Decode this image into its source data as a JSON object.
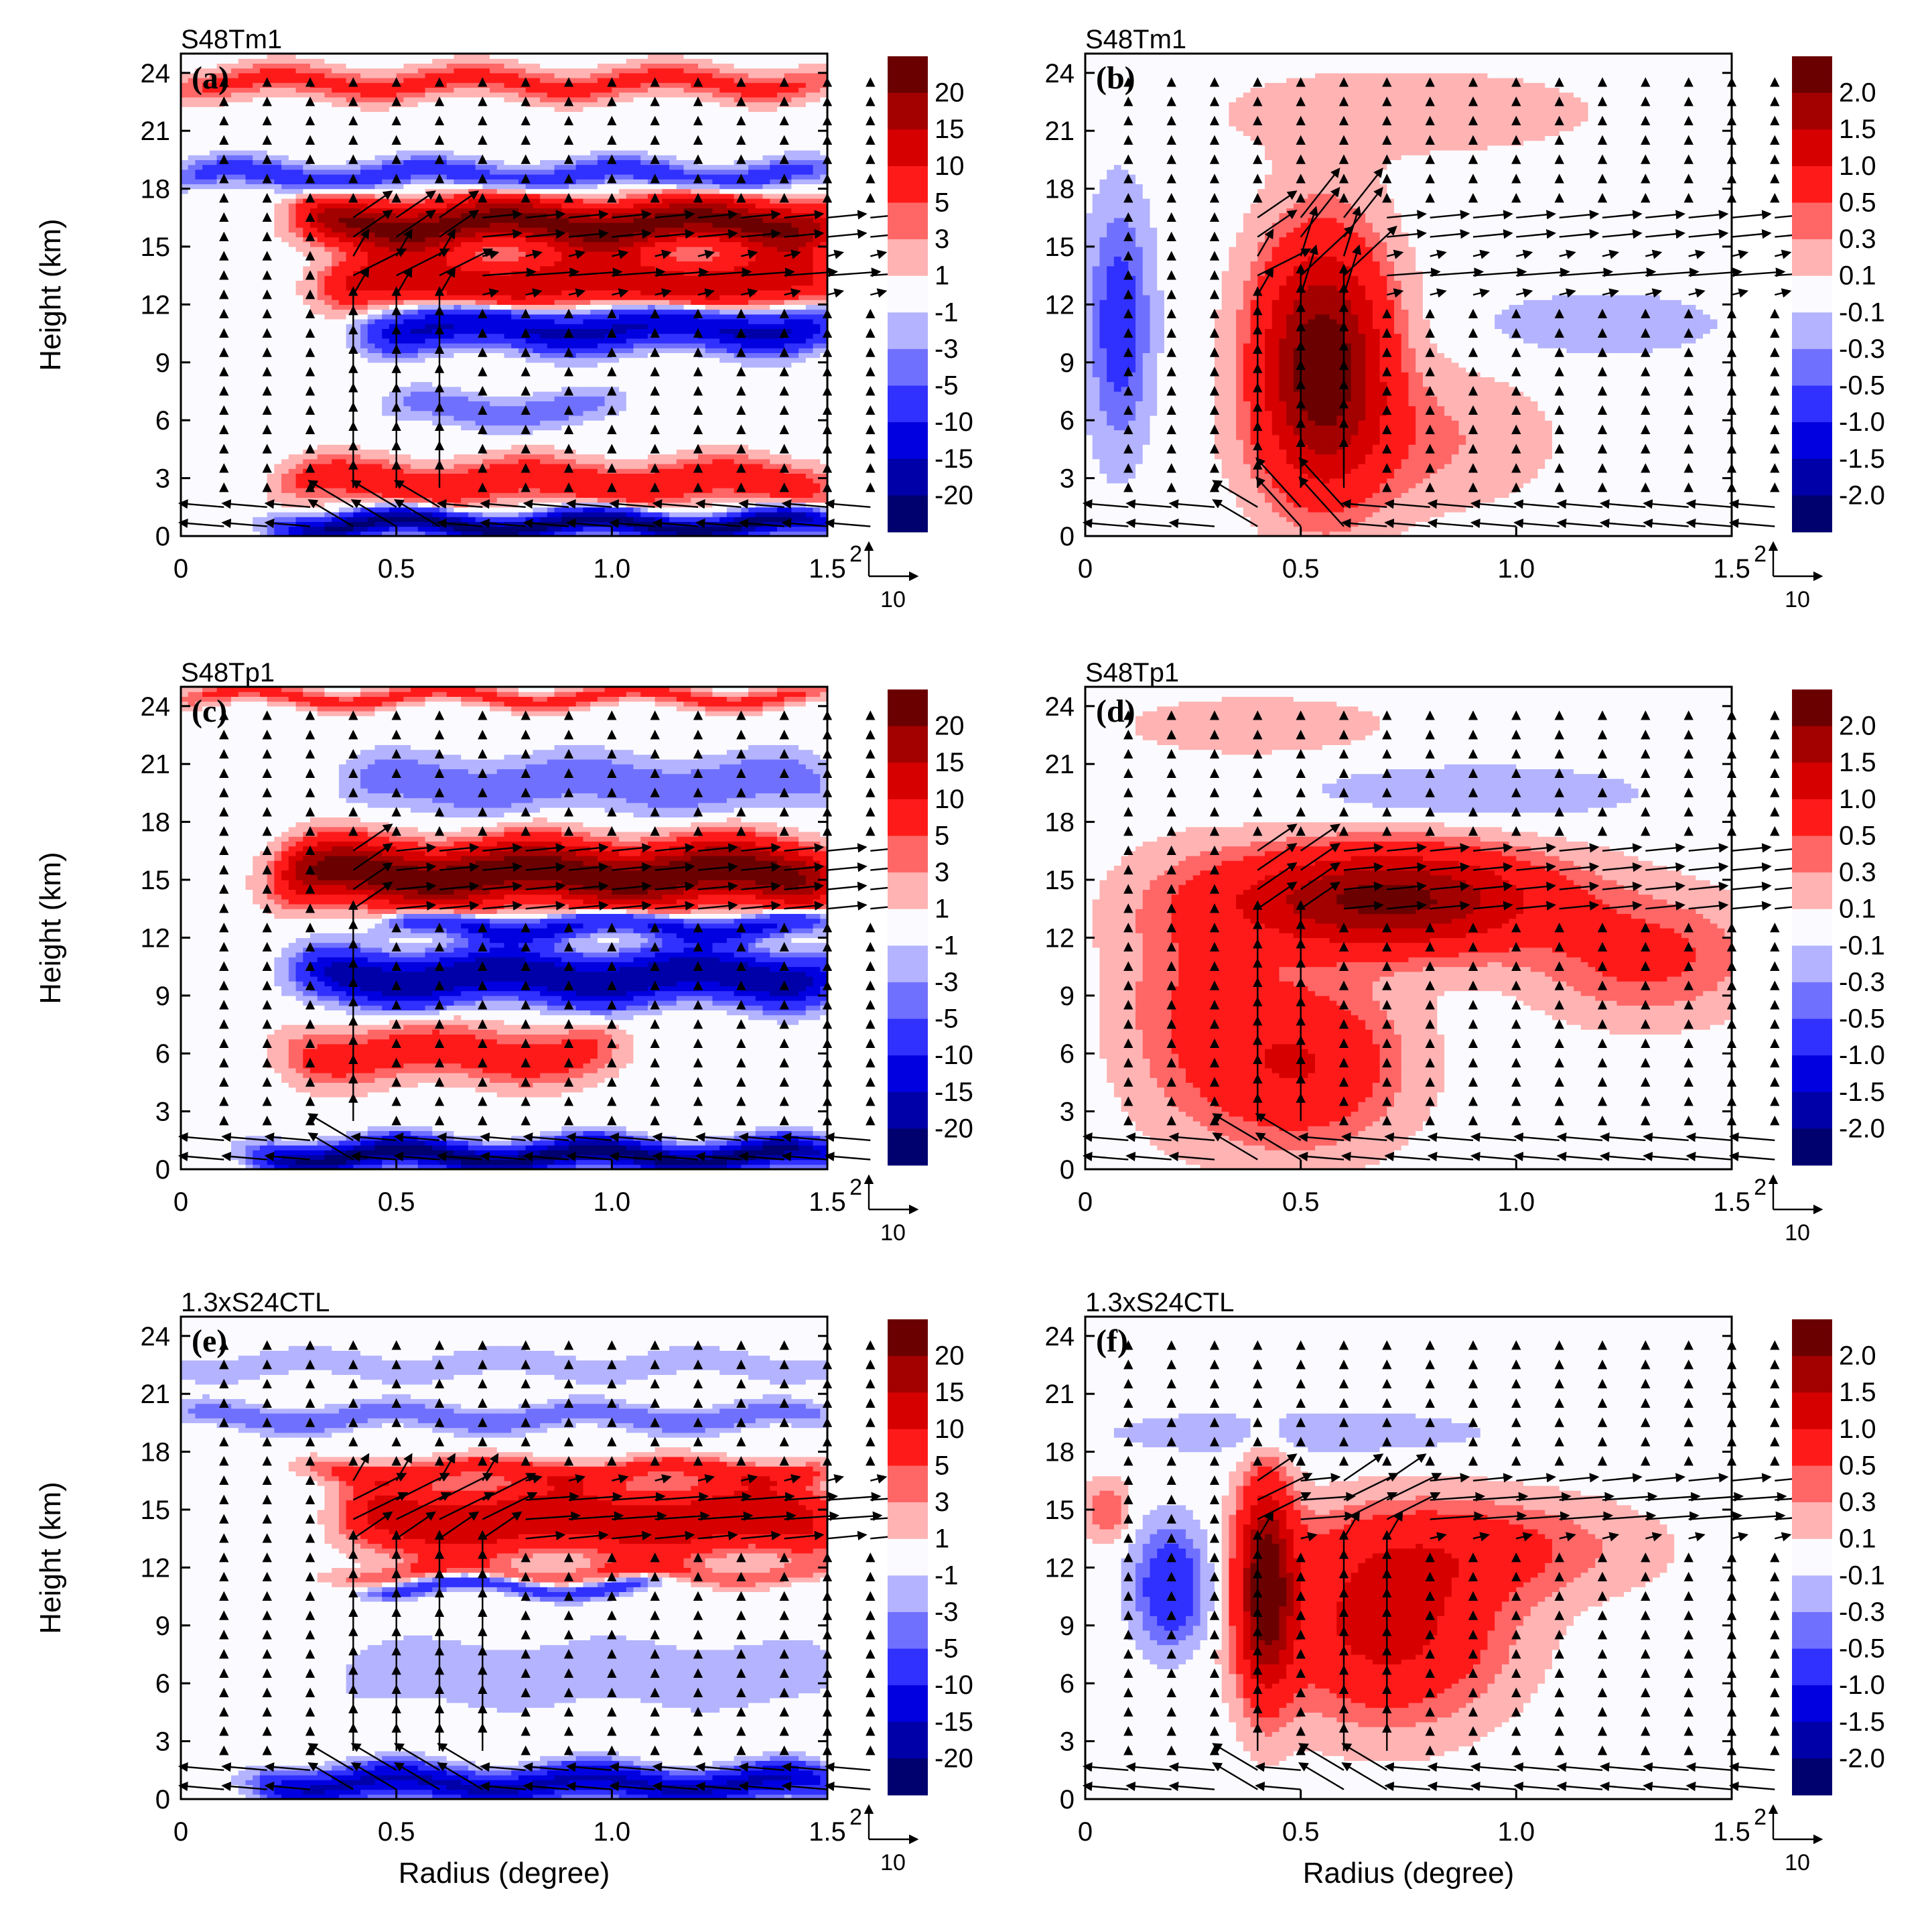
{
  "figure": {
    "xlabel": "Radius (degree)",
    "ylabel": "Height (km)",
    "xticks": [
      "0",
      "0.5",
      "1.0",
      "1.5"
    ],
    "yticks": [
      "0",
      "3",
      "6",
      "9",
      "12",
      "15",
      "18",
      "21",
      "24"
    ],
    "ref_vector": {
      "vertical_label": "2",
      "horizontal_label": "10"
    },
    "colorbar_left": [
      "20",
      "15",
      "10",
      "5",
      "3",
      "1",
      "-1",
      "-3",
      "-5",
      "-10",
      "-15",
      "-20"
    ],
    "colorbar_right": [
      "2.0",
      "1.5",
      "1.0",
      "0.5",
      "0.3",
      "0.1",
      "-0.1",
      "-0.3",
      "-0.5",
      "-1.0",
      "-1.5",
      "-2.0"
    ],
    "colors": {
      "levels": [
        "#6b0000",
        "#a30000",
        "#d60000",
        "#ff1a1a",
        "#ff6666",
        "#ffb3b3",
        "#fbfbff",
        "#b3b3ff",
        "#7070ff",
        "#3030ff",
        "#0000e0",
        "#0000a8",
        "#00006e"
      ]
    }
  },
  "chart_data": [
    {
      "type": "contour-vector",
      "panel_label": "(a)",
      "title": "S48Tm1",
      "xlabel": "Radius (degree)",
      "ylabel": "Height (km)",
      "xlim": [
        0,
        1.5
      ],
      "ylim": [
        0,
        25
      ],
      "levels": [
        -20,
        -15,
        -10,
        -5,
        -3,
        -1,
        1,
        3,
        5,
        10,
        15,
        20
      ],
      "features": [
        {
          "r0": 0.3,
          "r1": 1.5,
          "z": 16.2,
          "dz": 1.2,
          "amp": 22,
          "kind": "band"
        },
        {
          "r0": 0.35,
          "r1": 1.5,
          "z": 13.2,
          "dz": 1.3,
          "amp": 14,
          "kind": "band"
        },
        {
          "r0": 0.45,
          "r1": 1.5,
          "z": 10.8,
          "dz": 1.0,
          "amp": -16,
          "kind": "band"
        },
        {
          "r0": 0.0,
          "r1": 1.5,
          "z": 18.7,
          "dz": 0.7,
          "amp": -7,
          "kind": "band"
        },
        {
          "r0": 0.25,
          "r1": 1.5,
          "z": 2.8,
          "dz": 1.1,
          "amp": 8,
          "kind": "band"
        },
        {
          "r0": 0.25,
          "r1": 1.5,
          "z": 0.6,
          "dz": 0.6,
          "amp": -22,
          "kind": "band"
        },
        {
          "r0": 0.5,
          "r1": 1.0,
          "z": 6.6,
          "dz": 0.8,
          "amp": -5,
          "kind": "band"
        },
        {
          "r0": 0.0,
          "r1": 1.5,
          "z": 23.5,
          "dz": 0.8,
          "amp": 6,
          "kind": "band"
        }
      ],
      "vectors": {
        "inflow_z": 1.0,
        "outflow_z": [
          16,
          13.5
        ],
        "updraft_r": [
          0.4,
          0.5,
          0.6
        ]
      }
    },
    {
      "type": "contour-vector",
      "panel_label": "(b)",
      "title": "S48Tm1",
      "xlabel": "Radius (degree)",
      "ylabel": "Height (km)",
      "xlim": [
        0,
        1.5
      ],
      "ylim": [
        0,
        25
      ],
      "levels": [
        -2.0,
        -1.5,
        -1.0,
        -0.5,
        -0.3,
        -0.1,
        0.1,
        0.3,
        0.5,
        1.0,
        1.5,
        2.0
      ],
      "features": [
        {
          "r": 0.55,
          "z": 9,
          "sr": 0.14,
          "sz": 6,
          "amp": 2.4,
          "kind": "blob"
        },
        {
          "r": 0.75,
          "z": 5,
          "sr": 0.3,
          "sz": 3.5,
          "amp": 0.35,
          "kind": "blob"
        },
        {
          "r": 0.08,
          "z": 11,
          "sr": 0.07,
          "sz": 6,
          "amp": -0.7,
          "kind": "blob"
        },
        {
          "r": 1.2,
          "z": 11,
          "sr": 0.25,
          "sz": 1.5,
          "amp": -0.3,
          "kind": "blob"
        },
        {
          "r": 0.75,
          "z": 22,
          "sr": 0.5,
          "sz": 2.5,
          "amp": 0.2,
          "kind": "blob"
        }
      ],
      "vectors": {
        "inflow_z": 1.0,
        "outflow_z": [
          16,
          13.5
        ],
        "updraft_r": [
          0.45,
          0.55,
          0.6
        ]
      }
    },
    {
      "type": "contour-vector",
      "panel_label": "(c)",
      "title": "S48Tp1",
      "xlabel": "Radius (degree)",
      "ylabel": "Height (km)",
      "xlim": [
        0,
        1.5
      ],
      "ylim": [
        0,
        25
      ],
      "levels": [
        -20,
        -15,
        -10,
        -5,
        -3,
        -1,
        1,
        3,
        5,
        10,
        15,
        20
      ],
      "features": [
        {
          "r0": 0.25,
          "r1": 1.5,
          "z": 15.3,
          "dz": 1.5,
          "amp": 24,
          "kind": "band"
        },
        {
          "r0": 0.3,
          "r1": 1.5,
          "z": 10.0,
          "dz": 1.2,
          "amp": -20,
          "kind": "band"
        },
        {
          "r0": 0.5,
          "r1": 1.5,
          "z": 12.6,
          "dz": 0.6,
          "amp": -12,
          "kind": "band"
        },
        {
          "r0": 0.25,
          "r1": 1.0,
          "z": 6.0,
          "dz": 1.4,
          "amp": 7,
          "kind": "band"
        },
        {
          "r0": 0.2,
          "r1": 1.5,
          "z": 0.7,
          "dz": 0.7,
          "amp": -22,
          "kind": "band"
        },
        {
          "r0": 0.4,
          "r1": 1.5,
          "z": 20.0,
          "dz": 1.3,
          "amp": -5,
          "kind": "band"
        },
        {
          "r0": 0.0,
          "r1": 1.5,
          "z": 24.5,
          "dz": 0.5,
          "amp": 6,
          "kind": "band"
        }
      ],
      "vectors": {
        "inflow_z": 1.0,
        "outflow_z": [
          16,
          14
        ],
        "updraft_r": [
          0.4
        ]
      }
    },
    {
      "type": "contour-vector",
      "panel_label": "(d)",
      "title": "S48Tp1",
      "xlabel": "Radius (degree)",
      "ylabel": "Height (km)",
      "xlim": [
        0,
        1.5
      ],
      "ylim": [
        0,
        25
      ],
      "levels": [
        -2.0,
        -1.5,
        -1.0,
        -0.5,
        -0.3,
        -0.1,
        0.1,
        0.3,
        0.5,
        1.0,
        1.5,
        2.0
      ],
      "features": [
        {
          "r": 0.7,
          "z": 14,
          "sr": 0.35,
          "sz": 2.5,
          "amp": 2.2,
          "kind": "blob"
        },
        {
          "r": 0.5,
          "z": 5.5,
          "sr": 0.22,
          "sz": 4,
          "amp": 1.0,
          "kind": "blob"
        },
        {
          "r": 0.25,
          "z": 9,
          "sr": 0.18,
          "sz": 6,
          "amp": 0.45,
          "kind": "blob"
        },
        {
          "r": 1.3,
          "z": 11,
          "sr": 0.25,
          "sz": 3,
          "amp": 0.6,
          "kind": "blob"
        },
        {
          "r": 0.9,
          "z": 19.5,
          "sr": 0.4,
          "sz": 1.5,
          "amp": -0.25,
          "kind": "blob"
        },
        {
          "r": 0.4,
          "z": 23,
          "sr": 0.3,
          "sz": 1.5,
          "amp": 0.25,
          "kind": "blob"
        }
      ],
      "vectors": {
        "inflow_z": 1.0,
        "outflow_z": [
          16,
          14
        ],
        "updraft_r": [
          0.4,
          0.5
        ]
      }
    },
    {
      "type": "contour-vector",
      "panel_label": "(e)",
      "title": "1.3xS24CTL",
      "xlabel": "Radius (degree)",
      "ylabel": "Height (km)",
      "xlim": [
        0,
        1.5
      ],
      "ylim": [
        0,
        25
      ],
      "levels": [
        -20,
        -15,
        -10,
        -5,
        -3,
        -1,
        1,
        3,
        5,
        10,
        15,
        20
      ],
      "features": [
        {
          "r0": 0.4,
          "r1": 1.5,
          "z": 14.5,
          "dz": 1.7,
          "amp": 14,
          "kind": "band"
        },
        {
          "r0": 0.3,
          "r1": 1.5,
          "z": 17.0,
          "dz": 0.6,
          "amp": 6,
          "kind": "band"
        },
        {
          "r0": 0.35,
          "r1": 1.5,
          "z": 11.7,
          "dz": 0.5,
          "amp": 4,
          "kind": "band"
        },
        {
          "r0": 0.45,
          "r1": 1.1,
          "z": 11.0,
          "dz": 0.4,
          "amp": -8,
          "kind": "band"
        },
        {
          "r0": 0.0,
          "r1": 1.5,
          "z": 19.8,
          "dz": 0.6,
          "amp": -5,
          "kind": "band"
        },
        {
          "r0": 0.2,
          "r1": 1.5,
          "z": 0.8,
          "dz": 0.8,
          "amp": -16,
          "kind": "band"
        },
        {
          "r0": 0.4,
          "r1": 1.5,
          "z": 6.5,
          "dz": 1.5,
          "amp": -3,
          "kind": "band"
        },
        {
          "r0": 0.0,
          "r1": 1.5,
          "z": 22.5,
          "dz": 0.6,
          "amp": -3,
          "kind": "band"
        }
      ],
      "vectors": {
        "inflow_z": 1.0,
        "outflow_z": [
          15.5,
          14
        ],
        "updraft_r": [
          0.4,
          0.55,
          0.7
        ]
      }
    },
    {
      "type": "contour-vector",
      "panel_label": "(f)",
      "title": "1.3xS24CTL",
      "xlabel": "Radius (degree)",
      "ylabel": "Height (km)",
      "xlim": [
        0,
        1.5
      ],
      "ylim": [
        0,
        25
      ],
      "levels": [
        -2.0,
        -1.5,
        -1.0,
        -0.5,
        -0.3,
        -0.1,
        0.1,
        0.3,
        0.5,
        1.0,
        1.5,
        2.0
      ],
      "features": [
        {
          "r": 0.42,
          "z": 11,
          "sr": 0.06,
          "sz": 5,
          "amp": 2.4,
          "kind": "blob"
        },
        {
          "r": 0.7,
          "z": 9,
          "sr": 0.25,
          "sz": 4.5,
          "amp": 1.2,
          "kind": "blob"
        },
        {
          "r": 0.9,
          "z": 13,
          "sr": 0.35,
          "sz": 2.5,
          "amp": 0.6,
          "kind": "blob"
        },
        {
          "r": 0.2,
          "z": 11,
          "sr": 0.08,
          "sz": 3,
          "amp": -0.9,
          "kind": "blob"
        },
        {
          "r": 0.05,
          "z": 15,
          "sr": 0.05,
          "sz": 1.5,
          "amp": 0.5,
          "kind": "blob"
        },
        {
          "r": 0.5,
          "z": 19,
          "sr": 0.45,
          "sz": 1.2,
          "amp": -0.25,
          "kind": "blob"
        }
      ],
      "vectors": {
        "inflow_z": 1.0,
        "outflow_z": [
          16,
          14.5
        ],
        "updraft_r": [
          0.4,
          0.6,
          0.7
        ]
      }
    }
  ]
}
